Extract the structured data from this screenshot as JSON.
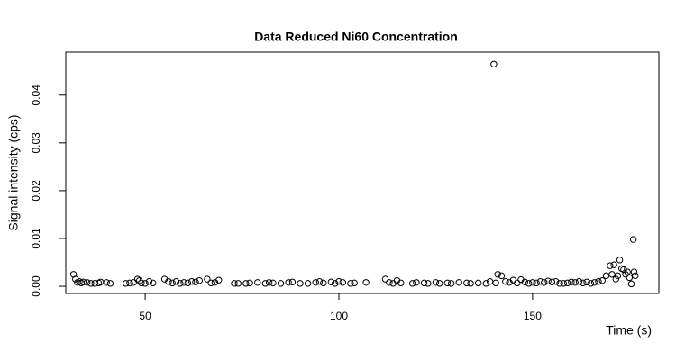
{
  "chart_data": {
    "type": "scatter",
    "title": "Data Reduced Ni60 Concentration",
    "x_label": "Time (s)",
    "y_label": "Signal intensity (cps)",
    "xlim": [
      29.5,
      182.6
    ],
    "ylim": [
      -0.0015,
      0.049
    ],
    "xticks": [
      50,
      100,
      150
    ],
    "yticks": [
      {
        "value": 0,
        "label": "0.00"
      },
      0.01,
      0.02,
      0.03,
      0.04
    ],
    "series": [
      {
        "color": "#000000",
        "x": [
          31.5,
          32,
          32.5,
          33,
          33.5,
          34,
          35,
          36,
          37,
          38,
          38.5,
          40,
          41,
          45,
          46,
          47,
          48,
          48.5,
          49,
          50,
          51,
          52,
          55,
          56,
          57,
          58,
          59,
          60,
          61,
          62,
          63,
          64,
          66,
          67,
          68,
          69,
          73,
          74,
          76,
          77,
          79,
          81,
          82,
          83,
          85,
          87,
          88,
          90,
          92,
          94,
          95,
          96,
          98,
          99,
          100,
          101,
          103,
          104,
          107,
          112,
          113,
          114,
          115,
          116,
          119,
          120,
          122,
          123,
          125,
          126,
          128,
          129,
          131,
          133,
          134,
          136,
          138,
          139,
          140,
          140.5,
          141,
          142,
          143,
          144,
          145,
          146,
          147,
          148,
          149,
          150,
          151,
          152,
          153,
          154,
          155,
          156,
          157,
          158,
          159,
          160,
          161,
          162,
          163,
          164,
          165,
          166,
          167,
          168,
          169,
          170,
          170.5,
          171,
          171.5,
          172,
          172.5,
          173,
          173.5,
          174,
          174.5,
          175,
          175.5,
          176,
          176.2,
          176.5
        ],
        "values": [
          0.0025,
          0.0015,
          0.0008,
          0.001,
          0.0007,
          0.0009,
          0.0008,
          0.0006,
          0.0006,
          0.0007,
          0.0009,
          0.0008,
          0.0006,
          0.0006,
          0.0007,
          0.0008,
          0.0015,
          0.0012,
          0.0007,
          0.0006,
          0.001,
          0.0007,
          0.0015,
          0.001,
          0.0007,
          0.001,
          0.0006,
          0.0008,
          0.0007,
          0.001,
          0.0009,
          0.0012,
          0.0015,
          0.0007,
          0.0008,
          0.0013,
          0.0006,
          0.0006,
          0.0006,
          0.0007,
          0.0008,
          0.0006,
          0.0008,
          0.0007,
          0.0006,
          0.0008,
          0.0009,
          0.0006,
          0.0006,
          0.0008,
          0.001,
          0.0007,
          0.0009,
          0.0006,
          0.001,
          0.0008,
          0.0006,
          0.0007,
          0.0008,
          0.0015,
          0.0008,
          0.0006,
          0.0012,
          0.0007,
          0.0006,
          0.0008,
          0.0007,
          0.0006,
          0.0008,
          0.0006,
          0.0007,
          0.0006,
          0.0008,
          0.0007,
          0.0006,
          0.0007,
          0.0006,
          0.001,
          0.0465,
          0.0007,
          0.0025,
          0.0022,
          0.001,
          0.0008,
          0.0013,
          0.0007,
          0.0014,
          0.0009,
          0.0006,
          0.0008,
          0.0007,
          0.001,
          0.0008,
          0.0011,
          0.0009,
          0.001,
          0.0006,
          0.0006,
          0.0007,
          0.0009,
          0.0008,
          0.001,
          0.0007,
          0.0009,
          0.0006,
          0.0008,
          0.001,
          0.0012,
          0.0022,
          0.0043,
          0.0025,
          0.0045,
          0.0015,
          0.0022,
          0.0055,
          0.0037,
          0.0035,
          0.0025,
          0.003,
          0.0018,
          0.0005,
          0.0098,
          0.003,
          0.0022
        ]
      }
    ]
  }
}
